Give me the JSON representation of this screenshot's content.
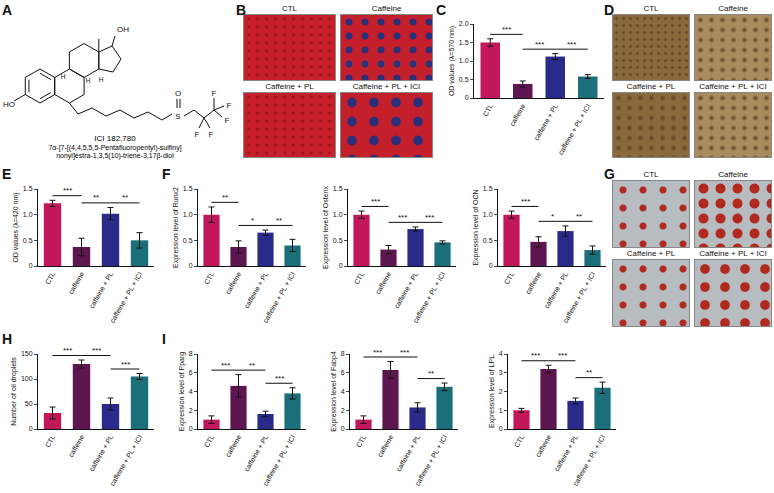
{
  "panel_labels": [
    "A",
    "B",
    "C",
    "D",
    "E",
    "F",
    "G",
    "H",
    "I"
  ],
  "structure": {
    "name": "ICI 182,780",
    "systematic_name": [
      "7α-[7-[(4,4,5,5,5-Pentafluoropentyl)-sulfiny]",
      "nonyl]estra-1,3,5(10)-triene-3,17β-diol"
    ],
    "atoms": [
      "OH",
      "HO",
      "H",
      "H",
      "H",
      "S",
      "O",
      "F",
      "F",
      "F",
      "F",
      "F"
    ]
  },
  "image_panels": [
    {
      "labels": [
        "CTL",
        "Caffeine",
        "Caffeine + PL",
        "Caffeine + PL + ICI"
      ]
    },
    {
      "labels": [
        "CTL",
        "Caffeine",
        "Caffeine + PL",
        "Caffeine + PL + ICI"
      ]
    },
    {
      "labels": [
        "CTL",
        "Caffeine",
        "Caffeine + PL",
        "Caffeine + PL + ICI"
      ]
    }
  ],
  "chart_data": [
    {
      "type": "bar",
      "y_label": "OD values (λ=570 nm)",
      "categories": [
        "CTL",
        "caffeine",
        "caffeine + PL",
        "caffeine + PL + ICI"
      ],
      "values": [
        1.5,
        0.38,
        1.12,
        0.58
      ],
      "errors": [
        0.1,
        0.08,
        0.08,
        0.05
      ],
      "colors": [
        "#c2185b",
        "#5e1650",
        "#2a2a8a",
        "#1b6f7a"
      ],
      "ylim": [
        0,
        2
      ],
      "yticks": [
        0,
        0.5,
        {
          "value": 1,
          "label": "1.0"
        },
        1.5,
        {
          "value": 2,
          "label": "2.0"
        }
      ],
      "grid": false,
      "significance": [
        {
          "from": 0,
          "to": 1,
          "label": "***"
        },
        {
          "from": 1,
          "to": 2,
          "label": "***"
        },
        {
          "from": 2,
          "to": 3,
          "label": "***"
        }
      ]
    },
    {
      "type": "bar",
      "y_label": "OD values (λ=420 nm)",
      "categories": [
        "CTL",
        "caffeine",
        "caffeine + PL",
        "caffeine + PL + ICI"
      ],
      "values": [
        1.22,
        0.37,
        1.02,
        0.5
      ],
      "errors": [
        0.06,
        0.17,
        0.12,
        0.15
      ],
      "colors": [
        "#c2185b",
        "#5e1650",
        "#2a2a8a",
        "#1b6f7a"
      ],
      "ylim": [
        0,
        1.5
      ],
      "yticks": [
        0,
        0.5,
        {
          "value": 1,
          "label": "1.0"
        },
        1.5
      ],
      "grid": false,
      "significance": [
        {
          "from": 0,
          "to": 1,
          "label": "***"
        },
        {
          "from": 1,
          "to": 2,
          "label": "**"
        },
        {
          "from": 2,
          "to": 3,
          "label": "**"
        }
      ]
    },
    {
      "type": "bar",
      "y_label": "Expression level of Runx2",
      "categories": [
        "CTL",
        "caffeine",
        "caffeine + PL",
        "caffeine + PL + ICI"
      ],
      "values": [
        1.0,
        0.37,
        0.65,
        0.4
      ],
      "errors": [
        0.15,
        0.12,
        0.05,
        0.12
      ],
      "colors": [
        "#c2185b",
        "#5e1650",
        "#2a2a8a",
        "#1b6f7a"
      ],
      "ylim": [
        0,
        1.5
      ],
      "yticks": [
        0,
        0.5,
        {
          "value": 1,
          "label": "1.0"
        },
        1.5
      ],
      "grid": false,
      "significance": [
        {
          "from": 0,
          "to": 1,
          "label": "**"
        },
        {
          "from": 1,
          "to": 2,
          "label": "*"
        },
        {
          "from": 2,
          "to": 3,
          "label": "**"
        }
      ]
    },
    {
      "type": "bar",
      "y_label": "Expression level of Osterix",
      "categories": [
        "CTL",
        "caffeine",
        "caffeine + PL",
        "caffeine + PL + ICI"
      ],
      "values": [
        1.0,
        0.32,
        0.72,
        0.46
      ],
      "errors": [
        0.07,
        0.08,
        0.04,
        0.03
      ],
      "colors": [
        "#c2185b",
        "#5e1650",
        "#2a2a8a",
        "#1b6f7a"
      ],
      "ylim": [
        0,
        1.5
      ],
      "yticks": [
        0,
        0.5,
        {
          "value": 1,
          "label": "1.0"
        },
        1.5
      ],
      "grid": false,
      "significance": [
        {
          "from": 0,
          "to": 1,
          "label": "***"
        },
        {
          "from": 1,
          "to": 2,
          "label": "***"
        },
        {
          "from": 2,
          "to": 3,
          "label": "***"
        }
      ]
    },
    {
      "type": "bar",
      "y_label": "Expression level of OCN",
      "categories": [
        "CTL",
        "caffeine",
        "caffeine + PL",
        "caffeine + PL + ICI"
      ],
      "values": [
        1.0,
        0.47,
        0.68,
        0.31
      ],
      "errors": [
        0.07,
        0.1,
        0.1,
        0.08
      ],
      "colors": [
        "#c2185b",
        "#5e1650",
        "#2a2a8a",
        "#1b6f7a"
      ],
      "ylim": [
        0,
        1.5
      ],
      "yticks": [
        0,
        0.5,
        {
          "value": 1,
          "label": "1.0"
        },
        1.5
      ],
      "grid": false,
      "significance": [
        {
          "from": 0,
          "to": 1,
          "label": "***"
        },
        {
          "from": 1,
          "to": 2,
          "label": "*"
        },
        {
          "from": 2,
          "to": 3,
          "label": "**"
        }
      ]
    },
    {
      "type": "bar",
      "y_label": "Number of oil droplets",
      "categories": [
        "CTL",
        "caffeine",
        "caffeine + PL",
        "caffeine + PL + ICI"
      ],
      "values": [
        32,
        130,
        50,
        105
      ],
      "errors": [
        12,
        8,
        12,
        6
      ],
      "colors": [
        "#c2185b",
        "#5e1650",
        "#2a2a8a",
        "#1b6f7a"
      ],
      "ylim": [
        0,
        150
      ],
      "yticks": [
        0,
        50,
        100,
        150
      ],
      "grid": false,
      "significance": [
        {
          "from": 0,
          "to": 1,
          "label": "***"
        },
        {
          "from": 1,
          "to": 2,
          "label": "***"
        },
        {
          "from": 2,
          "to": 3,
          "label": "***"
        }
      ]
    },
    {
      "type": "bar",
      "y_label": "Expression level of Pparg",
      "categories": [
        "CTL",
        "caffeine",
        "caffeine + PL",
        "caffeine + PL + ICI"
      ],
      "values": [
        1.0,
        4.6,
        1.6,
        3.8
      ],
      "errors": [
        0.4,
        1.2,
        0.3,
        0.6
      ],
      "colors": [
        "#c2185b",
        "#5e1650",
        "#2a2a8a",
        "#1b6f7a"
      ],
      "ylim": [
        0,
        8
      ],
      "yticks": [
        0,
        2,
        4,
        6,
        8
      ],
      "grid": false,
      "significance": [
        {
          "from": 0,
          "to": 1,
          "label": "***"
        },
        {
          "from": 1,
          "to": 2,
          "label": "**"
        },
        {
          "from": 2,
          "to": 3,
          "label": "***"
        }
      ]
    },
    {
      "type": "bar",
      "y_label": "Expression level of Fabp4",
      "categories": [
        "CTL",
        "caffeine",
        "caffeine + PL",
        "caffeine + PL + ICI"
      ],
      "values": [
        1.0,
        6.3,
        2.3,
        4.5
      ],
      "errors": [
        0.4,
        0.9,
        0.5,
        0.4
      ],
      "colors": [
        "#c2185b",
        "#5e1650",
        "#2a2a8a",
        "#1b6f7a"
      ],
      "ylim": [
        0,
        8
      ],
      "yticks": [
        0,
        2,
        4,
        6,
        8
      ],
      "grid": false,
      "significance": [
        {
          "from": 0,
          "to": 1,
          "label": "***"
        },
        {
          "from": 1,
          "to": 2,
          "label": "***"
        },
        {
          "from": 2,
          "to": 3,
          "label": "**"
        }
      ]
    },
    {
      "type": "bar",
      "y_label": "Expression level of LPL",
      "categories": [
        "CTL",
        "caffeine",
        "caffeine + PL",
        "caffeine + PL + ICI"
      ],
      "values": [
        1.0,
        3.2,
        1.5,
        2.2
      ],
      "errors": [
        0.1,
        0.2,
        0.15,
        0.3
      ],
      "colors": [
        "#c2185b",
        "#5e1650",
        "#2a2a8a",
        "#1b6f7a"
      ],
      "ylim": [
        0,
        4
      ],
      "yticks": [
        0,
        1,
        2,
        3,
        4
      ],
      "grid": false,
      "significance": [
        {
          "from": 0,
          "to": 1,
          "label": "***"
        },
        {
          "from": 1,
          "to": 2,
          "label": "***"
        },
        {
          "from": 2,
          "to": 3,
          "label": "**"
        }
      ]
    }
  ]
}
